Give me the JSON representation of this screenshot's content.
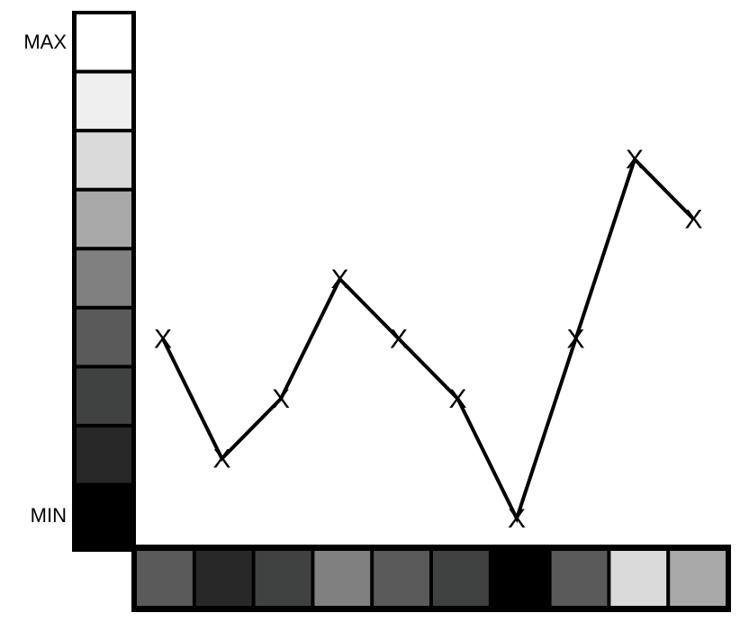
{
  "chart_data": {
    "type": "line",
    "title": "",
    "xlabel": "",
    "ylabel": "",
    "scale_labels": {
      "max": "MAX",
      "min": "MIN"
    },
    "marker_symbol": "X",
    "x": [
      1,
      2,
      3,
      4,
      5,
      6,
      7,
      8,
      9,
      10
    ],
    "values": [
      4,
      2,
      3,
      5,
      4,
      3,
      1,
      4,
      7,
      6
    ],
    "ylim": [
      0,
      8
    ],
    "vertical_scale_colors": [
      "#ffffff",
      "#efefef",
      "#dadada",
      "#a8a8a8",
      "#808080",
      "#5a5a5a",
      "#404242",
      "#282828",
      "#000000"
    ],
    "horizontal_strip_colors": [
      "#5a5a5a",
      "#282828",
      "#404242",
      "#808080",
      "#5a5a5a",
      "#404242",
      "#000000",
      "#5a5a5a",
      "#dadada",
      "#a8a8a8"
    ],
    "grid": false,
    "line_color": "#000000"
  }
}
